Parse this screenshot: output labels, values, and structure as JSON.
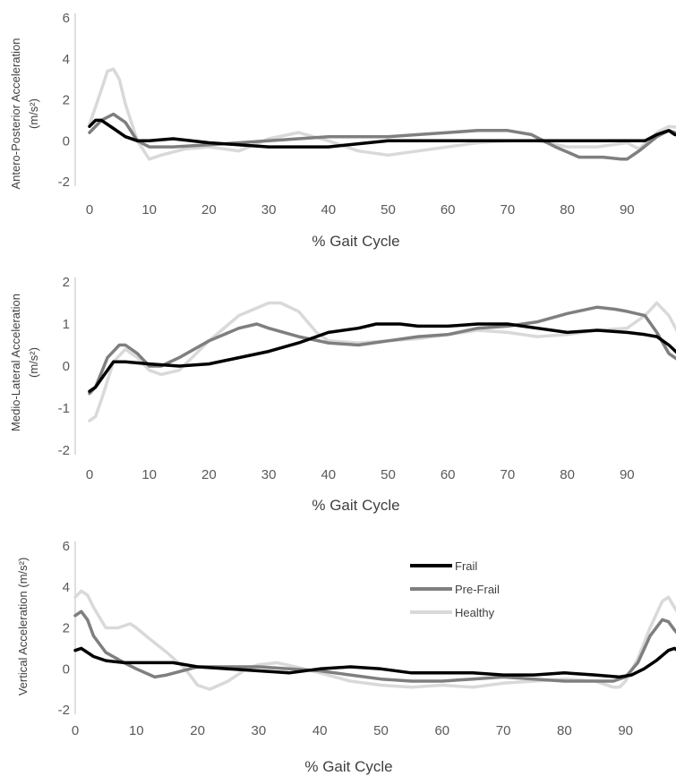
{
  "chart_data": [
    {
      "type": "line",
      "xlabel": "% Gait Cycle",
      "ylabel_lines": [
        "Antero-Posterior Acceleration",
        "(m/s²)"
      ],
      "xlim": [
        0,
        100
      ],
      "ylim": [
        -2,
        6
      ],
      "xticks": [
        0,
        10,
        20,
        30,
        40,
        50,
        60,
        70,
        80,
        90
      ],
      "yticks": [
        -2,
        0,
        2,
        4,
        6
      ],
      "series": [
        {
          "name": "Frail",
          "color": "#000000",
          "x": [
            0,
            1,
            2,
            4,
            6,
            8,
            10,
            14,
            20,
            30,
            40,
            50,
            60,
            70,
            80,
            90,
            93,
            95,
            97,
            98,
            100
          ],
          "y": [
            0.7,
            1.0,
            1.0,
            0.6,
            0.2,
            0.0,
            0.0,
            0.1,
            -0.1,
            -0.3,
            -0.3,
            0.0,
            0.0,
            0.0,
            0.0,
            0.0,
            0.0,
            0.3,
            0.5,
            0.3,
            0.2
          ]
        },
        {
          "name": "Pre-Frail",
          "color": "#7f7f7f",
          "x": [
            0,
            2,
            4,
            6,
            8,
            10,
            14,
            20,
            30,
            40,
            50,
            55,
            60,
            65,
            70,
            74,
            78,
            82,
            86,
            89,
            90,
            92,
            95,
            97,
            100
          ],
          "y": [
            0.4,
            1.0,
            1.3,
            0.9,
            0.0,
            -0.3,
            -0.3,
            -0.2,
            0.0,
            0.2,
            0.2,
            0.3,
            0.4,
            0.5,
            0.5,
            0.3,
            -0.3,
            -0.8,
            -0.8,
            -0.9,
            -0.9,
            -0.5,
            0.2,
            0.5,
            0.2
          ]
        },
        {
          "name": "Healthy",
          "color": "#d9d9d9",
          "x": [
            0,
            2,
            3,
            4,
            5,
            6,
            8,
            10,
            12,
            16,
            20,
            25,
            30,
            35,
            40,
            45,
            50,
            55,
            60,
            65,
            70,
            75,
            80,
            85,
            90,
            92,
            95,
            97,
            100
          ],
          "y": [
            0.8,
            2.5,
            3.4,
            3.5,
            3.0,
            1.8,
            0.0,
            -0.9,
            -0.7,
            -0.4,
            -0.3,
            -0.5,
            0.1,
            0.4,
            0.0,
            -0.5,
            -0.7,
            -0.5,
            -0.3,
            -0.1,
            0.0,
            0.0,
            -0.3,
            -0.3,
            -0.1,
            -0.4,
            0.4,
            0.7,
            0.6
          ]
        }
      ]
    },
    {
      "type": "line",
      "xlabel": "% Gait Cycle",
      "ylabel_lines": [
        "Medio-Lateral Acceleration",
        "(m/s²)"
      ],
      "xlim": [
        0,
        100
      ],
      "ylim": [
        -2,
        2
      ],
      "xticks": [
        0,
        10,
        20,
        30,
        40,
        50,
        60,
        70,
        80,
        90
      ],
      "yticks": [
        -2,
        -1,
        0,
        1,
        2
      ],
      "series": [
        {
          "name": "Frail",
          "color": "#000000",
          "x": [
            0,
            1,
            2,
            4,
            6,
            10,
            15,
            20,
            25,
            30,
            35,
            40,
            45,
            48,
            52,
            55,
            60,
            65,
            70,
            75,
            80,
            85,
            90,
            93,
            95,
            97,
            100
          ],
          "y": [
            -0.6,
            -0.5,
            -0.3,
            0.1,
            0.1,
            0.05,
            0.0,
            0.05,
            0.2,
            0.35,
            0.55,
            0.8,
            0.9,
            1.0,
            1.0,
            0.95,
            0.95,
            1.0,
            1.0,
            0.9,
            0.8,
            0.85,
            0.8,
            0.75,
            0.7,
            0.5,
            0.1
          ]
        },
        {
          "name": "Pre-Frail",
          "color": "#7f7f7f",
          "x": [
            0,
            1,
            3,
            5,
            6,
            8,
            10,
            12,
            15,
            20,
            25,
            28,
            30,
            35,
            40,
            45,
            50,
            55,
            60,
            65,
            70,
            75,
            80,
            85,
            88,
            90,
            93,
            95,
            97,
            100
          ],
          "y": [
            -0.65,
            -0.5,
            0.2,
            0.5,
            0.5,
            0.3,
            0.0,
            0.0,
            0.2,
            0.6,
            0.9,
            1.0,
            0.9,
            0.7,
            0.55,
            0.5,
            0.6,
            0.7,
            0.75,
            0.9,
            0.95,
            1.05,
            1.25,
            1.4,
            1.35,
            1.3,
            1.2,
            0.8,
            0.3,
            0.0
          ]
        },
        {
          "name": "Healthy",
          "color": "#d9d9d9",
          "x": [
            0,
            1,
            2,
            4,
            6,
            8,
            10,
            12,
            15,
            20,
            25,
            30,
            32,
            35,
            38,
            40,
            45,
            50,
            55,
            60,
            65,
            70,
            75,
            80,
            85,
            90,
            93,
            95,
            97,
            100
          ],
          "y": [
            -1.3,
            -1.2,
            -0.8,
            0.1,
            0.4,
            0.2,
            -0.1,
            -0.2,
            -0.1,
            0.6,
            1.2,
            1.5,
            1.5,
            1.3,
            0.8,
            0.6,
            0.55,
            0.6,
            0.65,
            0.75,
            0.85,
            0.8,
            0.7,
            0.75,
            0.85,
            0.9,
            1.2,
            1.5,
            1.2,
            0.4
          ]
        }
      ]
    },
    {
      "type": "line",
      "xlabel": "% Gait Cycle",
      "ylabel_lines": [
        "Vertical Acceleration (m/s²)"
      ],
      "xlim": [
        0,
        100
      ],
      "ylim": [
        -2,
        6
      ],
      "xticks": [
        0,
        10,
        20,
        30,
        40,
        50,
        60,
        70,
        80,
        90
      ],
      "yticks": [
        -2,
        0,
        2,
        4,
        6
      ],
      "legend": "top-right",
      "series": [
        {
          "name": "Frail",
          "color": "#000000",
          "x": [
            0,
            1,
            3,
            5,
            8,
            12,
            16,
            20,
            25,
            30,
            35,
            40,
            45,
            50,
            55,
            60,
            65,
            70,
            75,
            80,
            85,
            89,
            91,
            93,
            95,
            97,
            98,
            100
          ],
          "y": [
            0.9,
            1.0,
            0.6,
            0.4,
            0.3,
            0.3,
            0.3,
            0.1,
            0.0,
            -0.1,
            -0.2,
            0.0,
            0.1,
            0.0,
            -0.2,
            -0.2,
            -0.2,
            -0.3,
            -0.3,
            -0.2,
            -0.3,
            -0.4,
            -0.3,
            0.0,
            0.4,
            0.9,
            1.0,
            0.6
          ]
        },
        {
          "name": "Pre-Frail",
          "color": "#7f7f7f",
          "x": [
            0,
            1,
            2,
            3,
            5,
            8,
            10,
            13,
            15,
            20,
            25,
            30,
            35,
            40,
            45,
            50,
            55,
            60,
            65,
            70,
            75,
            80,
            85,
            88,
            90,
            92,
            94,
            96,
            97,
            98,
            100
          ],
          "y": [
            2.6,
            2.8,
            2.4,
            1.6,
            0.8,
            0.3,
            0.0,
            -0.4,
            -0.3,
            0.1,
            0.1,
            0.1,
            0.0,
            -0.1,
            -0.3,
            -0.5,
            -0.6,
            -0.6,
            -0.5,
            -0.4,
            -0.5,
            -0.6,
            -0.6,
            -0.6,
            -0.4,
            0.3,
            1.6,
            2.4,
            2.3,
            1.9,
            1.2
          ]
        },
        {
          "name": "Healthy",
          "color": "#d9d9d9",
          "x": [
            0,
            1,
            2,
            3,
            5,
            7,
            9,
            10,
            12,
            15,
            18,
            20,
            22,
            25,
            28,
            30,
            33,
            36,
            40,
            45,
            50,
            55,
            60,
            65,
            70,
            75,
            80,
            85,
            88,
            89,
            90,
            92,
            94,
            96,
            97,
            98,
            100
          ],
          "y": [
            3.5,
            3.8,
            3.6,
            3.0,
            2.0,
            2.0,
            2.2,
            2.0,
            1.5,
            0.8,
            0.0,
            -0.8,
            -1.0,
            -0.6,
            0.0,
            0.2,
            0.3,
            0.1,
            -0.2,
            -0.6,
            -0.8,
            -0.9,
            -0.8,
            -0.9,
            -0.7,
            -0.6,
            -0.5,
            -0.6,
            -0.9,
            -0.9,
            -0.6,
            0.5,
            2.0,
            3.3,
            3.5,
            3.0,
            2.0
          ]
        }
      ]
    }
  ]
}
